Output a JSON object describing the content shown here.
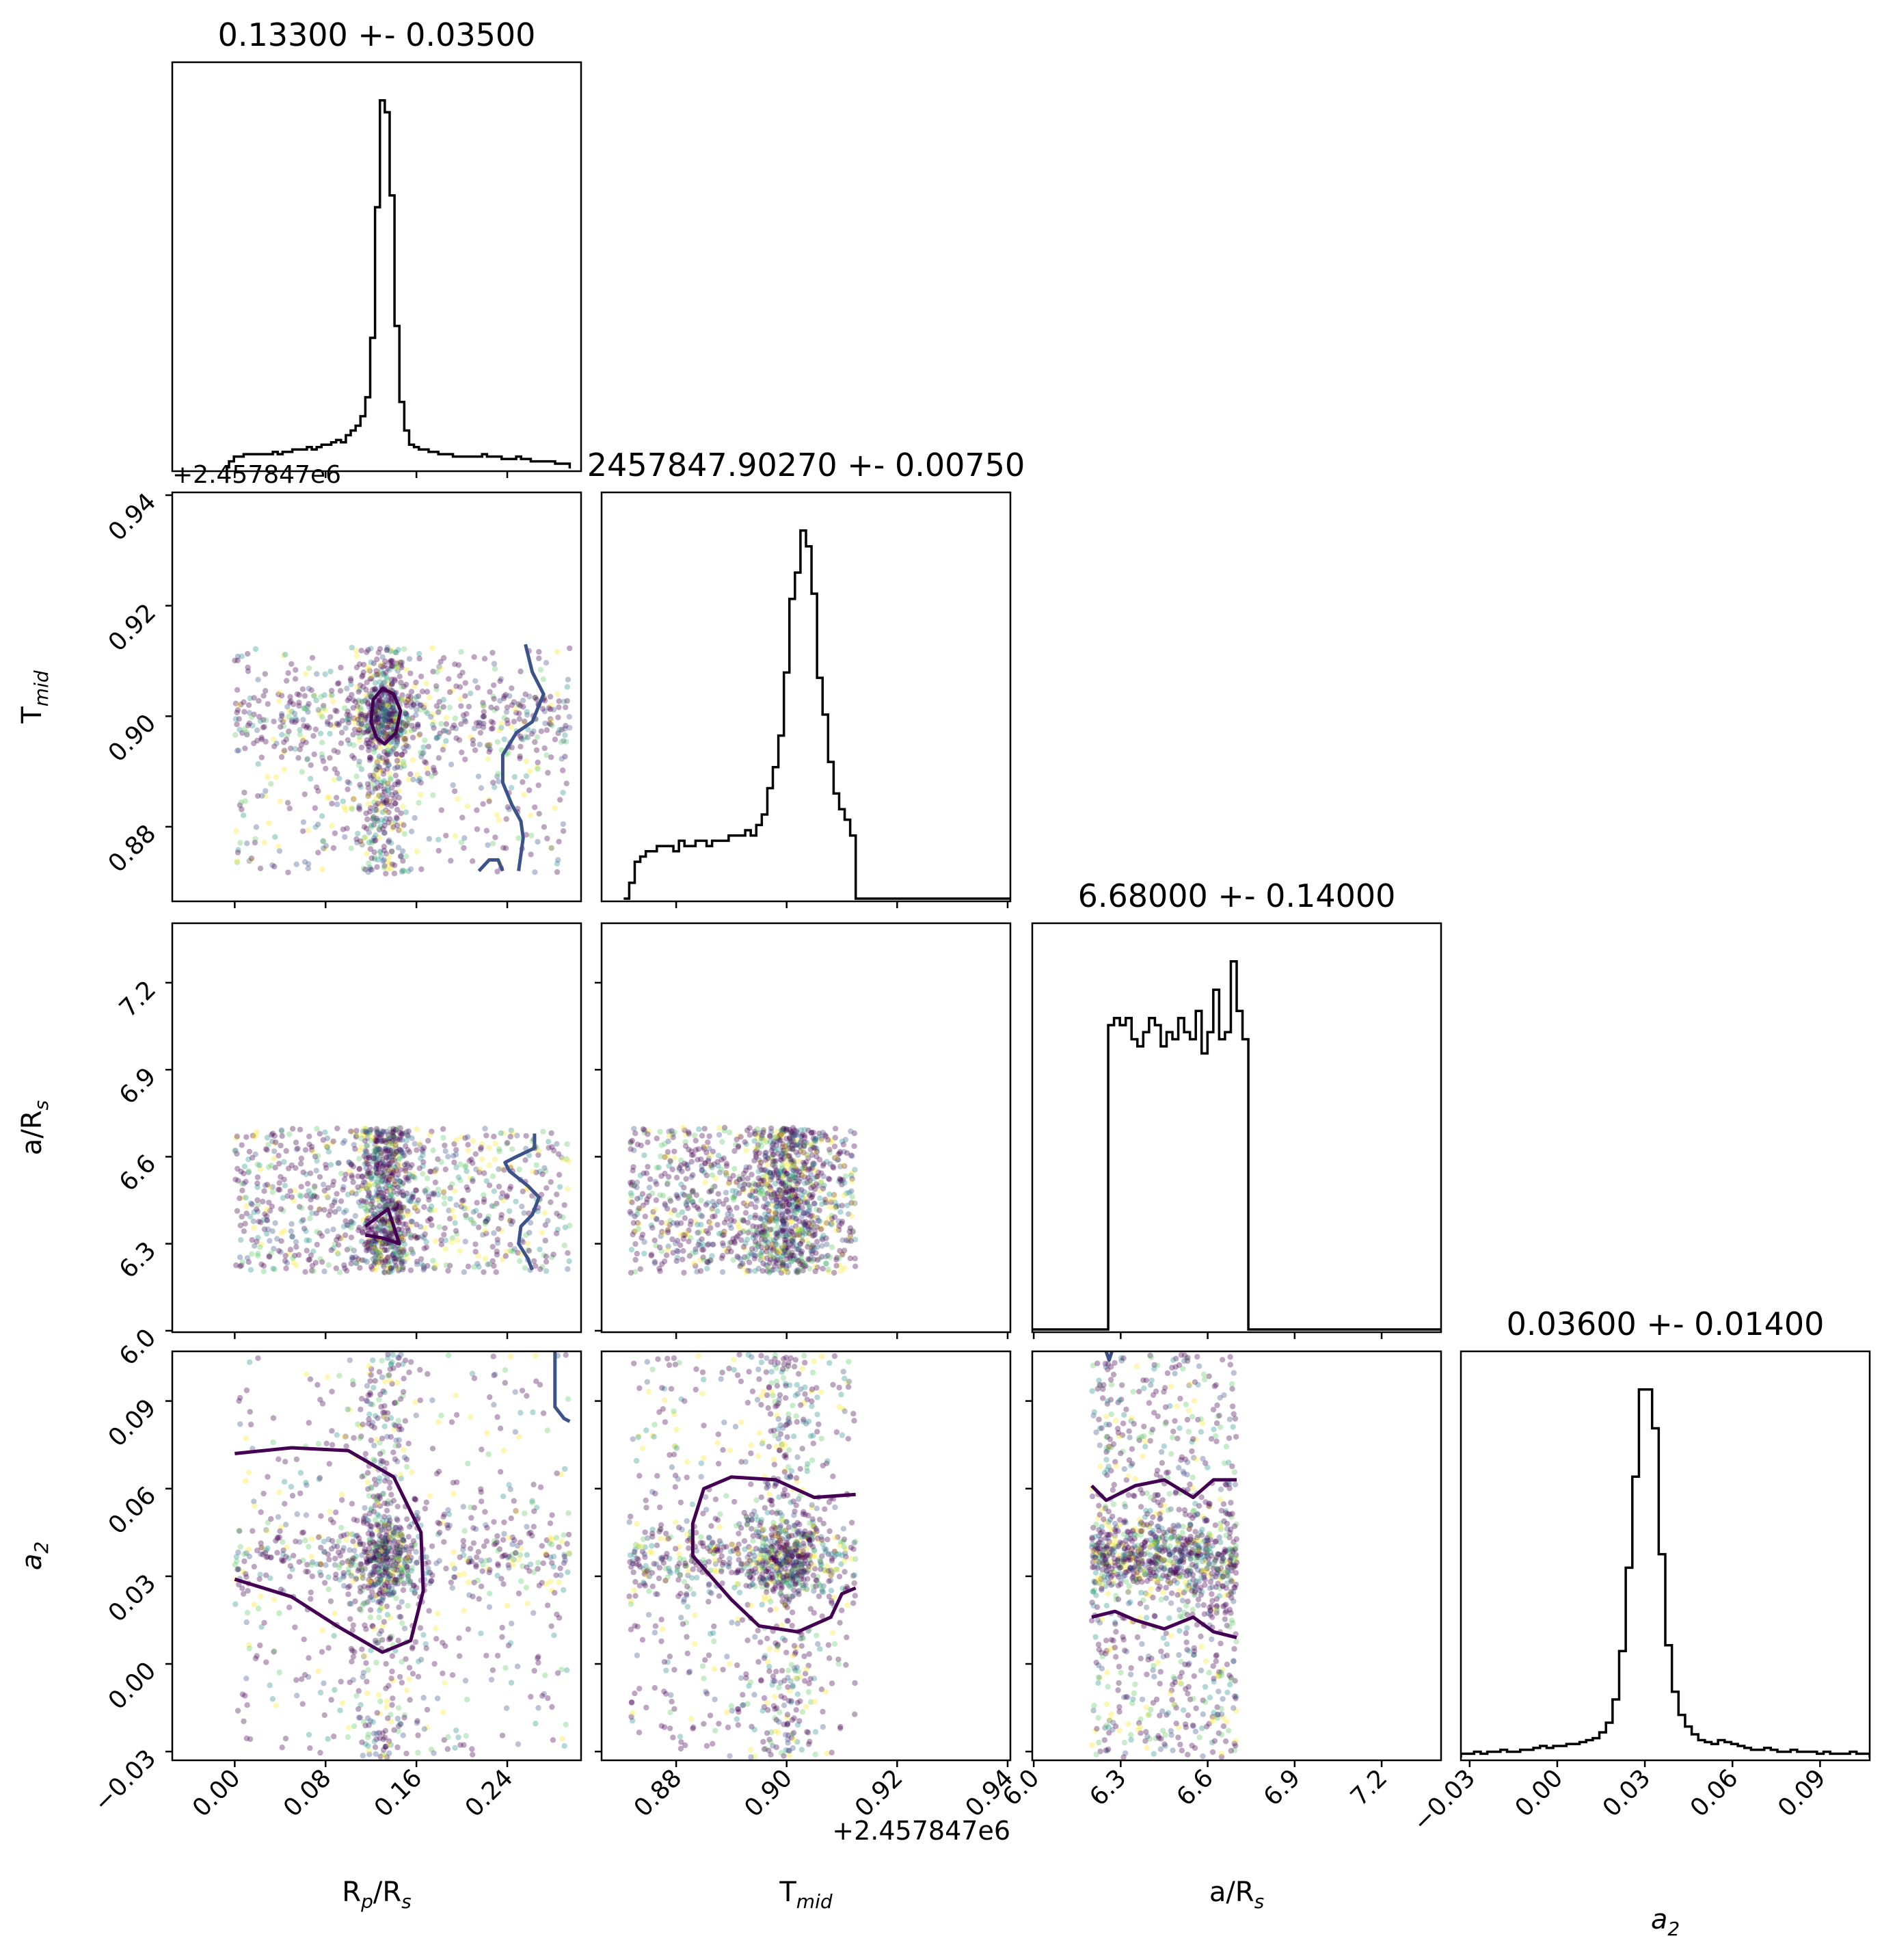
{
  "chart_data": {
    "type": "corner",
    "parameters": [
      {
        "key": "rp",
        "label": "R",
        "label_sub": "p",
        "label_rest": "/R",
        "label_sub2": "s",
        "range": [
          -0.055,
          0.305
        ],
        "ticks": [
          0.0,
          0.08,
          0.16,
          0.24
        ],
        "tick_labels": [
          "0.00",
          "0.08",
          "0.16",
          "0.24"
        ],
        "title": "0.13300 +- 0.03500",
        "offset_label": ""
      },
      {
        "key": "tmid",
        "label": "T",
        "label_sub": "mid",
        "label_rest": "",
        "label_sub2": "",
        "range": [
          0.8665,
          0.9405
        ],
        "ticks": [
          0.88,
          0.9,
          0.92,
          0.94
        ],
        "tick_labels": [
          "0.88",
          "0.90",
          "0.92",
          "0.94"
        ],
        "title": "2457847.90270 +- 0.00750",
        "offset_label": "+2.457847e6"
      },
      {
        "key": "ars",
        "label": "a/R",
        "label_sub": "s",
        "label_rest": "",
        "label_sub2": "",
        "range": [
          5.995,
          7.405
        ],
        "ticks": [
          6.0,
          6.3,
          6.6,
          6.9,
          7.2
        ],
        "tick_labels": [
          "6.0",
          "6.3",
          "6.6",
          "6.9",
          "7.2"
        ],
        "title": "6.68000 +- 0.14000",
        "offset_label": ""
      },
      {
        "key": "a2",
        "label": "a",
        "label_sub": "2",
        "label_rest": "",
        "label_sub2": "",
        "italic": true,
        "range": [
          -0.033,
          0.107
        ],
        "ticks": [
          -0.03,
          0.0,
          0.03,
          0.06,
          0.09
        ],
        "tick_labels": [
          "−0.03",
          "0.00",
          "0.03",
          "0.06",
          "0.09"
        ],
        "title": "0.03600 +- 0.01400",
        "offset_label": ""
      }
    ],
    "row_offset_labels": {
      "1": "+2.457847e6"
    },
    "histograms": {
      "rp": {
        "bins": [
          -0.005,
          0.295
        ],
        "counts": [
          3,
          5,
          5,
          6,
          6,
          6,
          6,
          6,
          6,
          7,
          6,
          7,
          7,
          8,
          8,
          8,
          9,
          8,
          9,
          10,
          10,
          11,
          12,
          11,
          14,
          16,
          18,
          22,
          30,
          55,
          110,
          155,
          150,
          115,
          60,
          28,
          16,
          10,
          9,
          8,
          8,
          7,
          7,
          6,
          6,
          6,
          5,
          5,
          5,
          5,
          5,
          5,
          6,
          5,
          5,
          5,
          4,
          4,
          4,
          5,
          4,
          4,
          3,
          3,
          3,
          3,
          3,
          2,
          2,
          2
        ]
      },
      "tmid": {
        "bins": [
          0.8705,
          0.9405
        ],
        "counts": [
          0,
          3,
          7,
          8,
          9,
          9,
          10,
          10,
          10,
          9,
          11,
          10,
          10,
          11,
          11,
          10,
          11,
          11,
          11,
          12,
          12,
          12,
          13,
          12,
          14,
          16,
          21,
          25,
          31,
          43,
          57,
          62,
          70,
          67,
          58,
          42,
          35,
          26,
          20,
          17,
          15,
          12,
          0,
          0,
          0,
          0,
          0,
          0,
          0,
          0,
          0,
          0,
          0,
          0,
          0,
          0,
          0,
          0,
          0,
          0,
          0,
          0,
          0,
          0,
          0,
          0,
          0,
          0,
          0,
          0
        ]
      },
      "ars": {
        "bins": [
          5.995,
          7.405
        ],
        "counts": [
          0,
          0,
          0,
          0,
          0,
          0,
          0,
          0,
          0,
          0,
          0,
          0,
          0,
          43,
          44,
          43,
          44,
          41,
          40,
          42,
          44,
          43,
          40,
          42,
          41,
          44,
          42,
          41,
          45,
          39,
          42,
          48,
          41,
          42,
          52,
          45,
          41,
          0,
          0,
          0,
          0,
          0,
          0,
          0,
          0,
          0,
          0,
          0,
          0,
          0,
          0,
          0,
          0,
          0,
          0,
          0,
          0,
          0,
          0,
          0,
          0,
          0,
          0,
          0,
          0,
          0,
          0,
          0,
          0,
          0
        ]
      },
      "a2": {
        "bins": [
          -0.033,
          0.107
        ],
        "counts": [
          2,
          2,
          3,
          2,
          3,
          3,
          4,
          3,
          3,
          4,
          4,
          5,
          6,
          5,
          6,
          6,
          7,
          7,
          8,
          9,
          10,
          13,
          18,
          30,
          55,
          98,
          145,
          190,
          190,
          170,
          105,
          58,
          34,
          22,
          16,
          12,
          9,
          8,
          7,
          9,
          8,
          7,
          6,
          5,
          4,
          4,
          5,
          4,
          3,
          3,
          4,
          3,
          3,
          3,
          2,
          3,
          2,
          2,
          2,
          3,
          2,
          2
        ]
      }
    },
    "scatter": {
      "point_colors": [
        "#440154",
        "#440154",
        "#440154",
        "#440154",
        "#3b528b",
        "#21918c",
        "#5ec962",
        "#fde725"
      ],
      "marginal_contour_color": "#3b528b",
      "contour_color": "#440154",
      "hist_color": "#000000",
      "background": "#ffffff"
    },
    "contours": {
      "rp_tmid": [
        [
          0.125,
          0.896
        ],
        [
          0.12,
          0.899
        ],
        [
          0.122,
          0.903
        ],
        [
          0.13,
          0.905
        ],
        [
          0.14,
          0.904
        ],
        [
          0.146,
          0.901
        ],
        [
          0.142,
          0.897
        ],
        [
          0.132,
          0.895
        ],
        [
          0.125,
          0.896
        ]
      ],
      "rp_tmid_side": [
        [
          0.256,
          0.913
        ],
        [
          0.262,
          0.908
        ],
        [
          0.272,
          0.904
        ],
        [
          0.262,
          0.899
        ],
        [
          0.248,
          0.897
        ],
        [
          0.236,
          0.893
        ],
        [
          0.236,
          0.888
        ],
        [
          0.244,
          0.884
        ],
        [
          0.252,
          0.881
        ],
        [
          0.254,
          0.878
        ],
        [
          0.252,
          0.875
        ],
        [
          0.25,
          0.872
        ]
      ],
      "rp_tmid_side2": [
        [
          0.215,
          0.872
        ],
        [
          0.224,
          0.874
        ],
        [
          0.232,
          0.874
        ],
        [
          0.236,
          0.872
        ]
      ],
      "rp_ars": [
        [
          0.115,
          6.33
        ],
        [
          0.13,
          6.32
        ],
        [
          0.145,
          6.3
        ],
        [
          0.14,
          6.36
        ],
        [
          0.135,
          6.42
        ],
        [
          0.115,
          6.36
        ]
      ],
      "rp_ars_side": [
        [
          0.264,
          6.68
        ],
        [
          0.264,
          6.63
        ],
        [
          0.248,
          6.6
        ],
        [
          0.238,
          6.58
        ],
        [
          0.242,
          6.55
        ],
        [
          0.258,
          6.5
        ],
        [
          0.268,
          6.46
        ],
        [
          0.262,
          6.4
        ],
        [
          0.252,
          6.36
        ],
        [
          0.25,
          6.3
        ],
        [
          0.258,
          6.25
        ],
        [
          0.262,
          6.21
        ]
      ],
      "rp_a2": [
        [
          0.0,
          0.072
        ],
        [
          0.05,
          0.074
        ],
        [
          0.1,
          0.073
        ],
        [
          0.14,
          0.064
        ],
        [
          0.164,
          0.045
        ],
        [
          0.166,
          0.025
        ],
        [
          0.155,
          0.008
        ],
        [
          0.13,
          0.004
        ],
        [
          0.09,
          0.013
        ],
        [
          0.05,
          0.023
        ],
        [
          0.0,
          0.029
        ]
      ],
      "rp_a2_side": [
        [
          0.282,
          0.107
        ],
        [
          0.282,
          0.088
        ],
        [
          0.29,
          0.084
        ],
        [
          0.295,
          0.083
        ]
      ],
      "tmid_a2": [
        [
          0.9125,
          0.058
        ],
        [
          0.905,
          0.057
        ],
        [
          0.898,
          0.063
        ],
        [
          0.89,
          0.064
        ],
        [
          0.885,
          0.06
        ],
        [
          0.883,
          0.048
        ],
        [
          0.883,
          0.037
        ],
        [
          0.89,
          0.022
        ],
        [
          0.895,
          0.013
        ],
        [
          0.902,
          0.011
        ],
        [
          0.908,
          0.016
        ],
        [
          0.91,
          0.024
        ],
        [
          0.9125,
          0.026
        ]
      ],
      "ars_a2_top": [
        [
          6.2,
          0.061
        ],
        [
          6.25,
          0.056
        ],
        [
          6.35,
          0.061
        ],
        [
          6.45,
          0.063
        ],
        [
          6.55,
          0.057
        ],
        [
          6.62,
          0.063
        ],
        [
          6.7,
          0.063
        ]
      ],
      "ars_a2_bottom": [
        [
          6.2,
          0.016
        ],
        [
          6.28,
          0.018
        ],
        [
          6.35,
          0.015
        ],
        [
          6.45,
          0.012
        ],
        [
          6.55,
          0.016
        ],
        [
          6.62,
          0.011
        ],
        [
          6.7,
          0.009
        ]
      ],
      "ars_a2_blob": [
        [
          6.25,
          0.107
        ],
        [
          6.26,
          0.104
        ],
        [
          6.27,
          0.107
        ]
      ]
    }
  }
}
